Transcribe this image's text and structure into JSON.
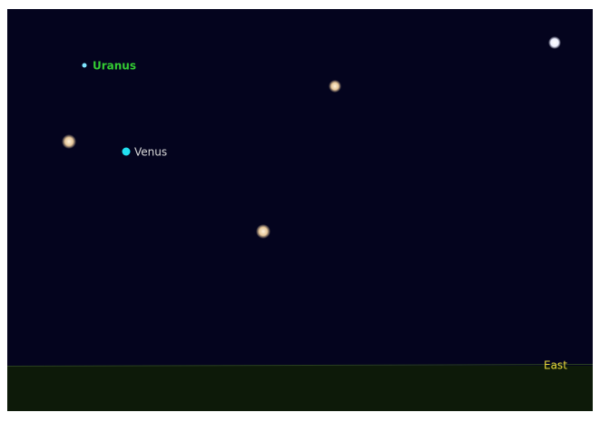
{
  "planets": [
    {
      "label": "Uranus"
    },
    {
      "label": "Venus"
    }
  ],
  "horizon": {
    "label": "East"
  }
}
